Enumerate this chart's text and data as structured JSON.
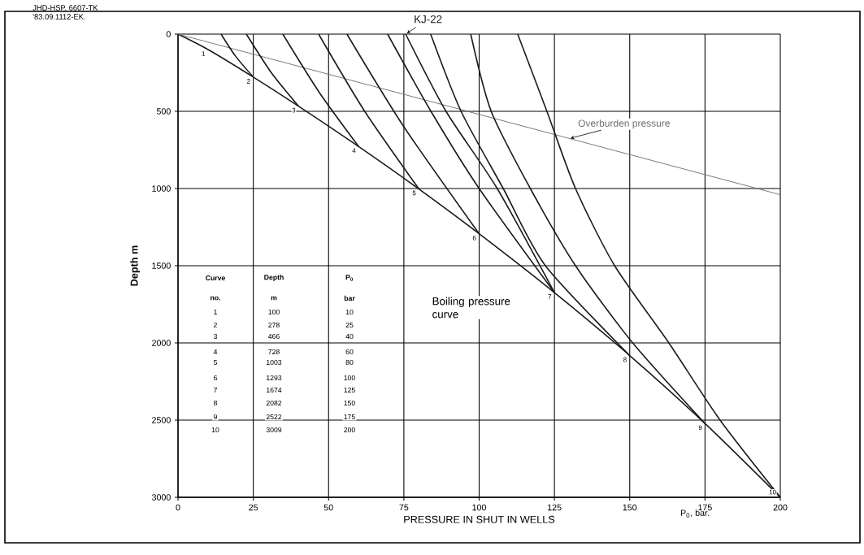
{
  "chart_data": {
    "type": "line",
    "xlabel": "PRESSURE IN SHUT IN WELLS",
    "ylabel": "Depth m",
    "xlim": [
      0,
      200
    ],
    "ylim": [
      3000,
      0
    ],
    "xticks": [
      0,
      25,
      50,
      75,
      100,
      125,
      150,
      175,
      200
    ],
    "yticks": [
      0,
      500,
      1000,
      1500,
      2000,
      2500,
      3000
    ],
    "grid": true,
    "series": [
      {
        "name": "Boiling pressure curve",
        "color": "#1a1a1a",
        "x": [
          0,
          10,
          25,
          40,
          60,
          80,
          100,
          125,
          150,
          175,
          200
        ],
        "values": [
          0,
          100,
          278,
          466,
          728,
          1003,
          1293,
          1674,
          2082,
          2522,
          3000
        ]
      },
      {
        "name": "Overburden pressure",
        "color": "#707070",
        "x": [
          0,
          200
        ],
        "values": [
          0,
          1040
        ]
      },
      {
        "color": "#1a1a1a",
        "x": [
          14.3,
          19,
          25
        ],
        "values": [
          0,
          140,
          278
        ]
      },
      {
        "color": "#1a1a1a",
        "x": [
          22.7,
          31,
          40
        ],
        "values": [
          0,
          250,
          466
        ]
      },
      {
        "color": "#1a1a1a",
        "x": [
          34.8,
          47,
          60
        ],
        "values": [
          0,
          380,
          728
        ]
      },
      {
        "color": "#1a1a1a",
        "x": [
          46.7,
          62,
          80
        ],
        "values": [
          0,
          500,
          1003
        ]
      },
      {
        "color": "#1a1a1a",
        "x": [
          56.1,
          75,
          100
        ],
        "values": [
          0,
          600,
          1293
        ]
      },
      {
        "color": "#1a1a1a",
        "x": [
          69.6,
          84,
          100,
          125
        ],
        "values": [
          0,
          500,
          1000,
          1674
        ]
      },
      {
        "name": "KJ-22",
        "color": "#1a1a1a",
        "x": [
          75.6,
          89,
          106,
          125
        ],
        "values": [
          0,
          500,
          1000,
          1674
        ]
      },
      {
        "color": "#1a1a1a",
        "x": [
          83.9,
          94,
          108,
          122,
          150
        ],
        "values": [
          0,
          500,
          1000,
          1500,
          2082
        ]
      },
      {
        "color": "#1a1a1a",
        "x": [
          97.2,
          104,
          117,
          132,
          151,
          175
        ],
        "values": [
          0,
          500,
          1000,
          1500,
          2000,
          2522
        ]
      },
      {
        "color": "#1a1a1a",
        "x": [
          112.8,
          122.5,
          132,
          145,
          163,
          180,
          200
        ],
        "values": [
          0,
          500,
          1000,
          1500,
          2000,
          2500,
          3000
        ]
      }
    ],
    "annotations": [
      "JHD-HSP. 6607-TK",
      "'83.09.1112-EK.",
      "P$_{0}$, bar.",
      "Curve",
      "no.",
      "Depth",
      "m",
      "P$_{0}$",
      "bar",
      "1",
      "100",
      "10",
      "2",
      "278",
      "25",
      "3",
      "466",
      "40",
      "4",
      "728",
      "60",
      "5",
      "1003",
      "80",
      "6",
      "1293",
      "100",
      "7",
      "1674",
      "125",
      "8",
      "2082",
      "150",
      "9",
      "2522",
      "175",
      "10",
      "3009",
      "200",
      {
        "text": "1",
        "x": 10,
        "y": 100
      },
      {
        "text": "2",
        "x": 25,
        "y": 278
      },
      {
        "text": "3",
        "x": 40,
        "y": 466
      },
      {
        "text": "4",
        "x": 60,
        "y": 728
      },
      {
        "text": "5",
        "x": 80,
        "y": 1003
      },
      {
        "text": "6",
        "x": 100,
        "y": 1293
      },
      {
        "text": "7",
        "x": 125,
        "y": 1674
      },
      {
        "text": "8",
        "x": 150,
        "y": 2082
      },
      {
        "text": "9",
        "x": 175,
        "y": 2522
      },
      {
        "text": "10",
        "x": 200,
        "y": 3000
      }
    ]
  }
}
